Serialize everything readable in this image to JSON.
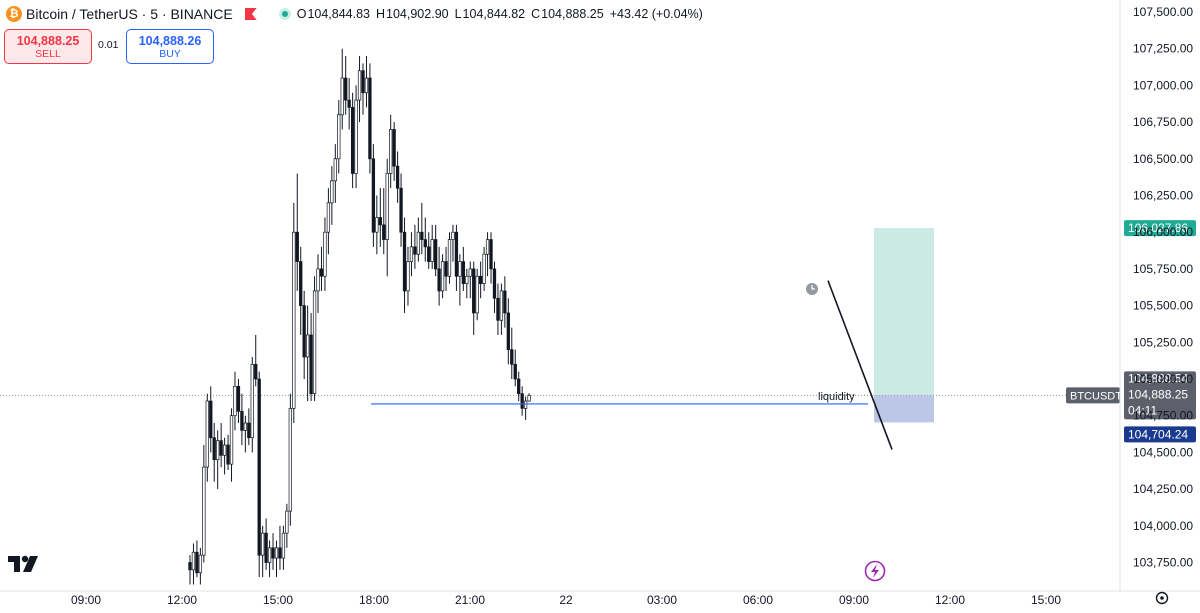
{
  "header": {
    "symbol_title": "Bitcoin / TetherUS · 5 · BINANCE",
    "coin_icon": "bitcoin-icon",
    "ohlc": {
      "o_label": "O",
      "o": "104,844.83",
      "h_label": "H",
      "h": "104,902.90",
      "l_label": "L",
      "l": "104,844.82",
      "c_label": "C",
      "c": "104,888.25",
      "change": "+43.42 (+0.04%)"
    }
  },
  "trade": {
    "sell_price": "104,888.25",
    "sell_label": "SELL",
    "spread": "0.01",
    "buy_price": "104,888.26",
    "buy_label": "BUY"
  },
  "chart_data": {
    "type": "candlestick",
    "symbol": "BTCUSDT",
    "interval": "5",
    "price_axis": [
      "107,500.00",
      "107,250.00",
      "107,000.00",
      "106,750.00",
      "106,500.00",
      "106,250.00",
      "106,000.00",
      "105,750.00",
      "105,500.00",
      "105,250.00",
      "105,000.00",
      "104,750.00",
      "104,500.00",
      "104,250.00",
      "104,000.00",
      "103,750.00"
    ],
    "price_axis_values": [
      107500,
      107250,
      107000,
      106750,
      106500,
      106250,
      106000,
      105750,
      105500,
      105250,
      105000,
      104750,
      104500,
      104250,
      104000,
      103750
    ],
    "time_axis": [
      "09:00",
      "12:00",
      "15:00",
      "18:00",
      "21:00",
      "22",
      "03:00",
      "06:00",
      "09:00",
      "12:00",
      "15:00"
    ],
    "ylim": [
      103700,
      107600
    ],
    "price_labels": {
      "target": "106,027.86",
      "stop": "104,704.24",
      "last_high": "104,888.54",
      "last": "104,888.25",
      "countdown": "04:11",
      "symbol_tag": "BTCUSDT"
    },
    "target_value": 106027.86,
    "stop_value": 104704.24,
    "last_value": 104888.25,
    "liquidity_level": 104830,
    "annotation": "liquidity",
    "trendline": {
      "start_price": 105670,
      "end_price": 104520
    },
    "colors": {
      "candle": "#131722",
      "target_zone": "#cbeae3",
      "stop_zone": "#bcc6e6",
      "liquidity_line": "#2962ff",
      "target_label_bg": "#22ab94",
      "stop_label_bg": "#1a3a8f"
    },
    "candles": [
      {
        "o": 103750,
        "h": 103800,
        "l": 103600,
        "c": 103700
      },
      {
        "o": 103700,
        "h": 103880,
        "l": 103600,
        "c": 103820
      },
      {
        "o": 103820,
        "h": 103900,
        "l": 103650,
        "c": 103680
      },
      {
        "o": 103680,
        "h": 103850,
        "l": 103600,
        "c": 103800
      },
      {
        "o": 103800,
        "h": 104550,
        "l": 103750,
        "c": 104400
      },
      {
        "o": 104400,
        "h": 104900,
        "l": 104300,
        "c": 104850
      },
      {
        "o": 104850,
        "h": 104950,
        "l": 104500,
        "c": 104600
      },
      {
        "o": 104600,
        "h": 104700,
        "l": 104300,
        "c": 104450
      },
      {
        "o": 104450,
        "h": 104650,
        "l": 104250,
        "c": 104580
      },
      {
        "o": 104580,
        "h": 104700,
        "l": 104400,
        "c": 104480
      },
      {
        "o": 104480,
        "h": 104600,
        "l": 104350,
        "c": 104550
      },
      {
        "o": 104550,
        "h": 104620,
        "l": 104380,
        "c": 104420
      },
      {
        "o": 104420,
        "h": 104800,
        "l": 104300,
        "c": 104750
      },
      {
        "o": 104750,
        "h": 105050,
        "l": 104650,
        "c": 104950
      },
      {
        "o": 104950,
        "h": 105000,
        "l": 104700,
        "c": 104780
      },
      {
        "o": 104780,
        "h": 104900,
        "l": 104550,
        "c": 104650
      },
      {
        "o": 104650,
        "h": 104750,
        "l": 104500,
        "c": 104700
      },
      {
        "o": 104700,
        "h": 104800,
        "l": 104550,
        "c": 104600
      },
      {
        "o": 104600,
        "h": 105150,
        "l": 104500,
        "c": 105100
      },
      {
        "o": 105100,
        "h": 105300,
        "l": 104950,
        "c": 105000
      },
      {
        "o": 105000,
        "h": 105050,
        "l": 103650,
        "c": 103800
      },
      {
        "o": 103800,
        "h": 104000,
        "l": 103650,
        "c": 103950
      },
      {
        "o": 103950,
        "h": 104050,
        "l": 103700,
        "c": 103750
      },
      {
        "o": 103750,
        "h": 103900,
        "l": 103650,
        "c": 103850
      },
      {
        "o": 103850,
        "h": 103950,
        "l": 103700,
        "c": 103780
      },
      {
        "o": 103780,
        "h": 103900,
        "l": 103650,
        "c": 103850
      },
      {
        "o": 103850,
        "h": 104000,
        "l": 103700,
        "c": 103780
      },
      {
        "o": 103780,
        "h": 104000,
        "l": 103700,
        "c": 103950
      },
      {
        "o": 103950,
        "h": 104150,
        "l": 103850,
        "c": 104100
      },
      {
        "o": 104100,
        "h": 104900,
        "l": 104000,
        "c": 104800
      },
      {
        "o": 104800,
        "h": 106200,
        "l": 104700,
        "c": 106000
      },
      {
        "o": 106000,
        "h": 106400,
        "l": 105600,
        "c": 105800
      },
      {
        "o": 105800,
        "h": 105900,
        "l": 105300,
        "c": 105500
      },
      {
        "o": 105500,
        "h": 105600,
        "l": 105000,
        "c": 105150
      },
      {
        "o": 105150,
        "h": 105500,
        "l": 104850,
        "c": 105300
      },
      {
        "o": 105300,
        "h": 105450,
        "l": 104850,
        "c": 104900
      },
      {
        "o": 104900,
        "h": 105700,
        "l": 104850,
        "c": 105600
      },
      {
        "o": 105600,
        "h": 105850,
        "l": 105450,
        "c": 105750
      },
      {
        "o": 105750,
        "h": 105900,
        "l": 105600,
        "c": 105700
      },
      {
        "o": 105700,
        "h": 106100,
        "l": 105600,
        "c": 106000
      },
      {
        "o": 106000,
        "h": 106300,
        "l": 105850,
        "c": 106200
      },
      {
        "o": 106200,
        "h": 106450,
        "l": 106050,
        "c": 106350
      },
      {
        "o": 106350,
        "h": 106600,
        "l": 106200,
        "c": 106500
      },
      {
        "o": 106500,
        "h": 106900,
        "l": 106400,
        "c": 106800
      },
      {
        "o": 106800,
        "h": 107250,
        "l": 106700,
        "c": 107050
      },
      {
        "o": 107050,
        "h": 107200,
        "l": 106800,
        "c": 106900
      },
      {
        "o": 106900,
        "h": 107050,
        "l": 106700,
        "c": 106850
      },
      {
        "o": 106850,
        "h": 106950,
        "l": 106300,
        "c": 106400
      },
      {
        "o": 106400,
        "h": 107000,
        "l": 106300,
        "c": 106900
      },
      {
        "o": 106900,
        "h": 107200,
        "l": 106750,
        "c": 107100
      },
      {
        "o": 107100,
        "h": 107150,
        "l": 106800,
        "c": 106950
      },
      {
        "o": 106950,
        "h": 107200,
        "l": 106850,
        "c": 107050
      },
      {
        "o": 107050,
        "h": 107150,
        "l": 106400,
        "c": 106500
      },
      {
        "o": 106500,
        "h": 106600,
        "l": 105900,
        "c": 106000
      },
      {
        "o": 106000,
        "h": 106250,
        "l": 105850,
        "c": 106100
      },
      {
        "o": 106100,
        "h": 106300,
        "l": 105900,
        "c": 106050
      },
      {
        "o": 106050,
        "h": 106300,
        "l": 105850,
        "c": 105950
      },
      {
        "o": 105950,
        "h": 106500,
        "l": 105700,
        "c": 106400
      },
      {
        "o": 106400,
        "h": 106800,
        "l": 106300,
        "c": 106700
      },
      {
        "o": 106700,
        "h": 106750,
        "l": 106350,
        "c": 106450
      },
      {
        "o": 106450,
        "h": 106550,
        "l": 106200,
        "c": 106300
      },
      {
        "o": 106300,
        "h": 106400,
        "l": 105900,
        "c": 106000
      },
      {
        "o": 106000,
        "h": 106100,
        "l": 105450,
        "c": 105600
      },
      {
        "o": 105600,
        "h": 105900,
        "l": 105500,
        "c": 105800
      },
      {
        "o": 105800,
        "h": 106000,
        "l": 105700,
        "c": 105900
      },
      {
        "o": 105900,
        "h": 106050,
        "l": 105750,
        "c": 105850
      },
      {
        "o": 105850,
        "h": 106100,
        "l": 105800,
        "c": 106000
      },
      {
        "o": 106000,
        "h": 106200,
        "l": 105850,
        "c": 105950
      },
      {
        "o": 105950,
        "h": 106100,
        "l": 105800,
        "c": 105900
      },
      {
        "o": 105900,
        "h": 106000,
        "l": 105750,
        "c": 105800
      },
      {
        "o": 105800,
        "h": 106050,
        "l": 105750,
        "c": 105950
      },
      {
        "o": 105950,
        "h": 106050,
        "l": 105700,
        "c": 105750
      },
      {
        "o": 105750,
        "h": 105900,
        "l": 105500,
        "c": 105600
      },
      {
        "o": 105600,
        "h": 105850,
        "l": 105550,
        "c": 105800
      },
      {
        "o": 105800,
        "h": 105900,
        "l": 105600,
        "c": 105700
      },
      {
        "o": 105700,
        "h": 106000,
        "l": 105650,
        "c": 105950
      },
      {
        "o": 105950,
        "h": 106050,
        "l": 105800,
        "c": 106000
      },
      {
        "o": 106000,
        "h": 106050,
        "l": 105600,
        "c": 105700
      },
      {
        "o": 105700,
        "h": 105850,
        "l": 105500,
        "c": 105800
      },
      {
        "o": 105800,
        "h": 105900,
        "l": 105600,
        "c": 105650
      },
      {
        "o": 105650,
        "h": 105750,
        "l": 105550,
        "c": 105700
      },
      {
        "o": 105700,
        "h": 105800,
        "l": 105550,
        "c": 105750
      },
      {
        "o": 105750,
        "h": 105800,
        "l": 105300,
        "c": 105450
      },
      {
        "o": 105450,
        "h": 105750,
        "l": 105400,
        "c": 105700
      },
      {
        "o": 105700,
        "h": 105800,
        "l": 105550,
        "c": 105650
      },
      {
        "o": 105650,
        "h": 105900,
        "l": 105600,
        "c": 105850
      },
      {
        "o": 105850,
        "h": 106000,
        "l": 105700,
        "c": 105950
      },
      {
        "o": 105950,
        "h": 106000,
        "l": 105650,
        "c": 105750
      },
      {
        "o": 105750,
        "h": 105800,
        "l": 105450,
        "c": 105550
      },
      {
        "o": 105550,
        "h": 105650,
        "l": 105300,
        "c": 105400
      },
      {
        "o": 105400,
        "h": 105650,
        "l": 105300,
        "c": 105600
      },
      {
        "o": 105600,
        "h": 105700,
        "l": 105350,
        "c": 105450
      },
      {
        "o": 105450,
        "h": 105550,
        "l": 105100,
        "c": 105200
      },
      {
        "o": 105200,
        "h": 105350,
        "l": 105000,
        "c": 105100
      },
      {
        "o": 105100,
        "h": 105200,
        "l": 104950,
        "c": 105000
      },
      {
        "o": 105000,
        "h": 105050,
        "l": 104850,
        "c": 104900
      },
      {
        "o": 104900,
        "h": 104950,
        "l": 104750,
        "c": 104800
      },
      {
        "o": 104800,
        "h": 104880,
        "l": 104720,
        "c": 104850
      },
      {
        "o": 104850,
        "h": 104903,
        "l": 104845,
        "c": 104888
      }
    ]
  },
  "annotations": {
    "liquidity_text": "liquidity",
    "alert_icon": "clock-alert-icon",
    "lightning_icon": "lightning-icon"
  },
  "branding": {
    "logo": "tradingview-logo",
    "reset_icon": "reset-scale-icon"
  }
}
